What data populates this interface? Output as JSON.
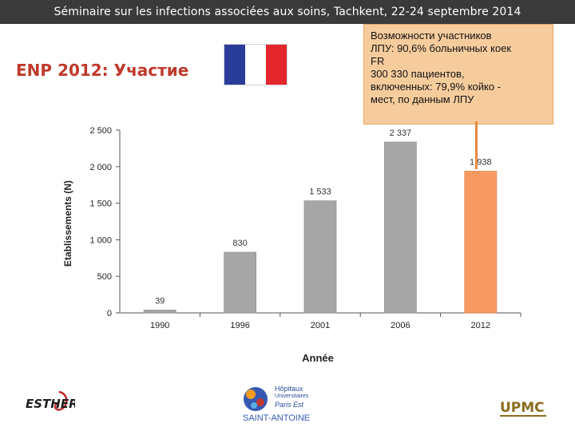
{
  "header": {
    "title": "Séminaire sur les infections associées aux soins, Tachkent, 22-24 septembre 2014"
  },
  "slide": {
    "title": "ENP 2012: Участие"
  },
  "flag": {
    "colors": [
      "#2a3c9a",
      "#ffffff",
      "#e4262d"
    ]
  },
  "callout": {
    "lines": [
      "Возможности участников",
      "ЛПУ: 90,6% больничных коек",
      "FR",
      "300 330 пациентов,",
      "включенных:  79,9% койко -",
      "мест, по данным ЛПУ"
    ]
  },
  "chart_data": {
    "type": "bar",
    "categories": [
      "1990",
      "1996",
      "2001",
      "2006",
      "2012"
    ],
    "values": [
      39,
      830,
      1533,
      2337,
      1938
    ],
    "value_labels": [
      "39",
      "830",
      "1 533",
      "2 337",
      "1 938"
    ],
    "title": "",
    "xlabel": "Année",
    "ylabel": "Etablissements (N)",
    "ylim": [
      0,
      2500
    ],
    "yticks": [
      0,
      500,
      1000,
      1500,
      2000,
      2500
    ],
    "ytick_labels": [
      "0",
      "500",
      "1 000",
      "1 500",
      "2 000",
      "2 500"
    ],
    "grid": false,
    "bar_color": "#a6a6a6",
    "highlight_color": "#f79a62",
    "highlight_index": 4
  },
  "logos": {
    "esther": "ESTHER",
    "aphp": {
      "line1": "Hôpitaux",
      "line2": "Universitaires",
      "line3": "Paris Est",
      "name": "SAINT-ANTOINE"
    },
    "upmc": "UPMC"
  }
}
